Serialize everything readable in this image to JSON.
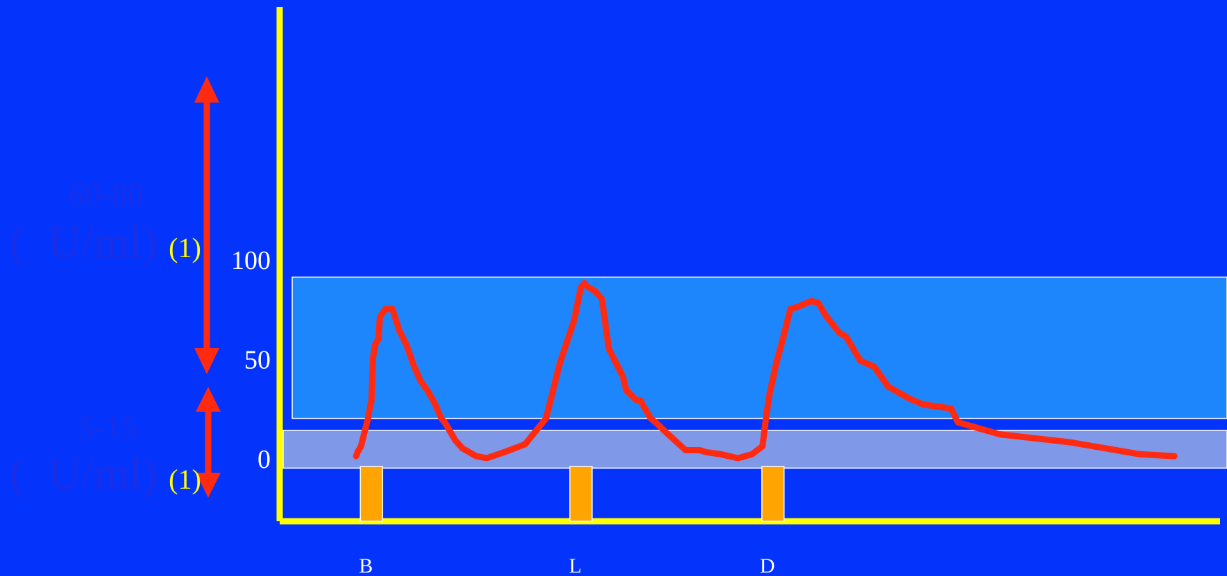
{
  "chart_data": {
    "type": "line",
    "title": "",
    "xlabel": "",
    "ylabel": "",
    "ylim": [
      -16,
      114
    ],
    "y_ticks": [
      "0",
      "50",
      "100"
    ],
    "x_tick_labels": [
      "B",
      "L",
      "D"
    ],
    "meal_x": [
      0.5,
      3.5,
      6.25
    ],
    "grid": false,
    "bands": [
      {
        "name": "60-80",
        "y_from": 20,
        "y_to": 91,
        "color": "#1e86fc"
      },
      {
        "name": "5-15",
        "y_from": -5,
        "y_to": 14,
        "color": "#8098e8"
      }
    ],
    "series": [
      {
        "color": "#ff2a10",
        "x": [
          0.28,
          0.3,
          0.35,
          0.4,
          0.45,
          0.48,
          0.5,
          0.52,
          0.55,
          0.6,
          0.62,
          0.7,
          0.8,
          0.9,
          1.0,
          1.1,
          1.2,
          1.3,
          1.4,
          1.5,
          1.55,
          1.7,
          1.8,
          1.9,
          2.0,
          2.15,
          2.4,
          2.7,
          3.0,
          3.2,
          3.4,
          3.5,
          3.55,
          3.6,
          3.7,
          3.8,
          3.9,
          4.1,
          4.15,
          4.3,
          4.35,
          4.5,
          4.6,
          4.75,
          5.0,
          5.2,
          5.3,
          5.5,
          5.75,
          5.95,
          6.1,
          6.15,
          6.2,
          6.3,
          6.4,
          6.5,
          6.6,
          6.8,
          6.9,
          7.0,
          7.2,
          7.3,
          7.5,
          7.7,
          7.9,
          8.2,
          8.4,
          8.8,
          8.9,
          9.0,
          9.2,
          9.5,
          10.0,
          10.5,
          11.0,
          11.5,
          12.0
        ],
        "y": [
          1,
          3,
          6,
          13,
          20,
          26,
          29,
          50,
          57,
          60,
          71,
          75,
          75,
          64,
          57,
          47,
          39,
          34,
          28,
          20,
          18,
          9,
          5,
          3,
          1,
          0,
          3,
          7,
          20,
          48,
          69,
          86,
          88,
          86,
          84,
          80,
          55,
          41,
          34,
          29,
          29,
          20,
          17,
          12,
          4,
          4,
          3,
          2,
          0,
          2,
          6,
          20,
          32,
          48,
          61,
          75,
          76,
          79,
          78,
          72,
          63,
          61,
          49,
          46,
          36,
          30,
          27,
          25,
          18,
          17,
          15,
          12,
          10,
          8,
          5,
          2,
          1
        ]
      }
    ]
  }
}
